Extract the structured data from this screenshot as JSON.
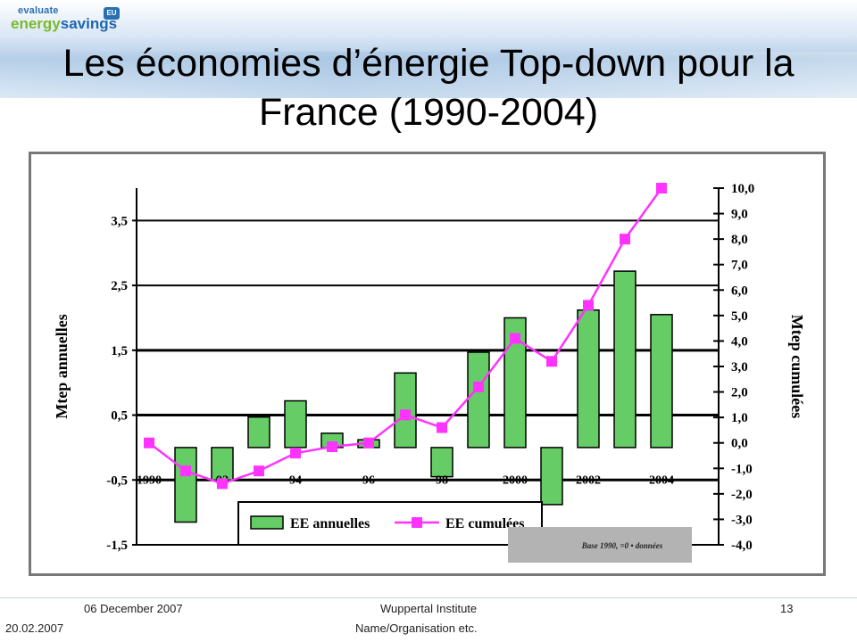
{
  "header": {
    "logo_top": "evaluate",
    "logo_energy": "energy",
    "logo_savings": "savings",
    "logo_eu": "EU"
  },
  "title": "Les économies d’énergie Top-down pour la France  (1990-2004)",
  "colors": {
    "bar_fill": "#66cc66",
    "line": "#ff33ff",
    "banner": "#b7cfe8"
  },
  "chart_data": {
    "type": "bar",
    "x": [
      1990,
      1991,
      1992,
      1993,
      1994,
      1995,
      1996,
      1997,
      1998,
      1999,
      2000,
      2001,
      2002,
      2003,
      2004
    ],
    "x_tick_labels": [
      "1990",
      "92",
      "94",
      "96",
      "98",
      "2000",
      "2002",
      "2004"
    ],
    "x_tick_years": [
      1990,
      1992,
      1994,
      1996,
      1998,
      2000,
      2002,
      2004
    ],
    "series": [
      {
        "name": "EE annuelles",
        "type": "bar",
        "axis": "left",
        "values": [
          0,
          -1.15,
          -0.5,
          0.47,
          0.72,
          0.22,
          0.12,
          1.15,
          -0.45,
          1.47,
          2.0,
          -0.88,
          2.12,
          2.72,
          2.05
        ]
      },
      {
        "name": "EE cumulées",
        "type": "line",
        "axis": "right",
        "values": [
          0.0,
          -1.1,
          -1.6,
          -1.1,
          -0.4,
          -0.15,
          0.0,
          1.1,
          0.6,
          2.2,
          4.1,
          3.2,
          5.4,
          8.0,
          10.0
        ]
      }
    ],
    "ylabel_left": "Mtep annuelles",
    "ylabel_right": "Mtep cumulées",
    "ylim_left": [
      -1.5,
      4.0
    ],
    "ylim_right": [
      -4.0,
      10.0
    ],
    "yticks_left": [
      "3,5",
      "2,5",
      "1,5",
      "0,5",
      "-0,5",
      "-1,5"
    ],
    "yticks_left_values": [
      3.5,
      2.5,
      1.5,
      0.5,
      -0.5,
      -1.5
    ],
    "yticks_right": [
      "10,0",
      "9,0",
      "8,0",
      "7,0",
      "6,0",
      "5,0",
      "4,0",
      "3,0",
      "2,0",
      "1,0",
      "0,0",
      "-1,0",
      "-2,0",
      "-3,0",
      "-4,0"
    ],
    "yticks_right_values": [
      10,
      9,
      8,
      7,
      6,
      5,
      4,
      3,
      2,
      1,
      0,
      -1,
      -2,
      -3,
      -4
    ],
    "note": "Base 1990, =0 • données",
    "legend_position": "bottom-center",
    "grid": true
  },
  "footer": {
    "date_top": "06 December 2007",
    "date_bottom": "20.02.2007",
    "org_top": "Wuppertal Institute",
    "org_bottom": "Name/Organisation etc.",
    "page": "13"
  }
}
